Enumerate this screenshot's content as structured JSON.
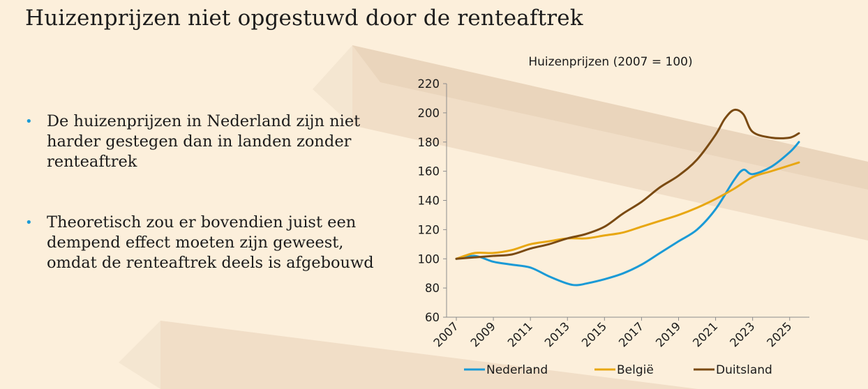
{
  "slide": {
    "title": "Huizenprijzen niet opgestuwd door de renteaftrek",
    "bullets": [
      "De huizenprijzen in Nederland zijn niet harder gestegen dan in landen zonder renteaftrek",
      "Theoretisch zou er bovendien juist een dempend effect moeten zijn geweest, omdat de renteaftrek deels is afgebouwd"
    ],
    "bullet_color": "#1a9ad6",
    "background_color": "#fcefdb"
  },
  "chart_data": {
    "type": "line",
    "title": "Huizenprijzen (2007 = 100)",
    "xlabel": "",
    "ylabel": "",
    "xlim": [
      2007,
      2025.5
    ],
    "ylim": [
      60,
      220
    ],
    "yticks": [
      60,
      80,
      100,
      120,
      140,
      160,
      180,
      200,
      220
    ],
    "xticks": [
      "2007",
      "2009",
      "2011",
      "2013",
      "2015",
      "2017",
      "2019",
      "2021",
      "2023",
      "2025"
    ],
    "grid": false,
    "legend_position": "bottom",
    "series": [
      {
        "name": "Nederland",
        "color": "#1a9ad6",
        "x": [
          2007,
          2008,
          2009,
          2010,
          2011,
          2012,
          2013,
          2013.5,
          2014,
          2015,
          2016,
          2017,
          2018,
          2019,
          2020,
          2021,
          2022,
          2022.5,
          2023,
          2024,
          2025,
          2025.5
        ],
        "values": [
          100,
          102,
          98,
          96,
          94,
          88,
          83,
          82,
          83,
          86,
          90,
          96,
          104,
          112,
          120,
          134,
          154,
          161,
          158,
          163,
          173,
          180
        ]
      },
      {
        "name": "België",
        "color": "#e8a712",
        "x": [
          2007,
          2008,
          2009,
          2010,
          2011,
          2012,
          2013,
          2014,
          2015,
          2016,
          2017,
          2018,
          2019,
          2020,
          2021,
          2022,
          2023,
          2024,
          2025,
          2025.5
        ],
        "values": [
          100,
          104,
          104,
          106,
          110,
          112,
          114,
          114,
          116,
          118,
          122,
          126,
          130,
          135,
          141,
          148,
          156,
          160,
          164,
          166
        ]
      },
      {
        "name": "Duitsland",
        "color": "#7a4a12",
        "x": [
          2007,
          2008,
          2009,
          2010,
          2011,
          2012,
          2013,
          2014,
          2015,
          2016,
          2017,
          2018,
          2019,
          2020,
          2021,
          2021.5,
          2022,
          2022.5,
          2023,
          2024,
          2025,
          2025.5
        ],
        "values": [
          100,
          101,
          102,
          103,
          107,
          110,
          114,
          117,
          122,
          131,
          139,
          149,
          157,
          168,
          185,
          196,
          202,
          199,
          187,
          183,
          183,
          186
        ]
      }
    ]
  }
}
